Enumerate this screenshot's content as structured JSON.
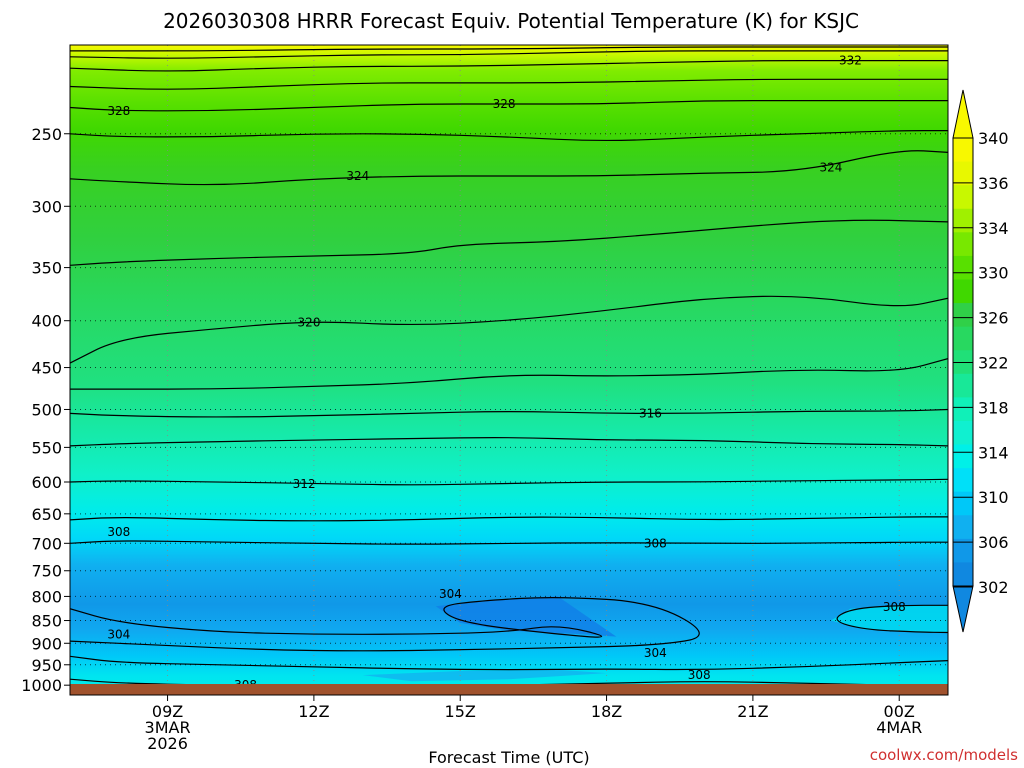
{
  "chart_data": {
    "type": "heatmap",
    "title": "2026030308 HRRR Forecast Equiv. Potential Temperature (K) for KSJC",
    "xlabel": "Forecast Time (UTC)",
    "ylabel": "",
    "y_scale": "log",
    "y_inverted": true,
    "ylim": [
      1025,
      200
    ],
    "y_ticks": [
      250,
      300,
      350,
      400,
      450,
      500,
      550,
      600,
      650,
      700,
      750,
      800,
      850,
      900,
      950,
      1000
    ],
    "x_range_hours": [
      7,
      25
    ],
    "x_ticks": [
      {
        "hour": 9,
        "lines": [
          "09Z",
          "3MAR",
          "2026"
        ]
      },
      {
        "hour": 12,
        "lines": [
          "12Z"
        ]
      },
      {
        "hour": 15,
        "lines": [
          "15Z"
        ]
      },
      {
        "hour": 18,
        "lines": [
          "18Z"
        ]
      },
      {
        "hour": 21,
        "lines": [
          "21Z"
        ]
      },
      {
        "hour": 24,
        "lines": [
          "00Z",
          "4MAR"
        ]
      }
    ],
    "grid": true,
    "colorbar": {
      "placement": "right",
      "labels": [
        "340",
        "336",
        "334",
        "330",
        "326",
        "322",
        "318",
        "314",
        "310",
        "306",
        "302"
      ],
      "colors": [
        "#f8f800",
        "#e8f800",
        "#c8f800",
        "#a0f000",
        "#78e800",
        "#58e000",
        "#40d800",
        "#30d048",
        "#28d860",
        "#20e078",
        "#18e898",
        "#10f0b8",
        "#10f0d0",
        "#00f0e8",
        "#00e0f8",
        "#00c8f8",
        "#10b0f0",
        "#1098e8",
        "#1088e0"
      ],
      "low_color": "#1088e0",
      "high_color": "#f8f800"
    },
    "ground_color": "#a0522d",
    "contours": [
      {
        "theta": 304,
        "points": [
          [
            7,
            825
          ],
          [
            8,
            855
          ],
          [
            10,
            875
          ],
          [
            12,
            880
          ],
          [
            14,
            880
          ],
          [
            16,
            875
          ],
          [
            17,
            858
          ],
          [
            18.2,
            890
          ],
          [
            17,
            880
          ],
          [
            15,
            855
          ],
          [
            14.5,
            820
          ],
          [
            15.5,
            808
          ],
          [
            17,
            800
          ],
          [
            19,
            812
          ],
          [
            20.2,
            885
          ],
          [
            19,
            905
          ],
          [
            17,
            910
          ],
          [
            15,
            915
          ],
          [
            13,
            918
          ],
          [
            11,
            915
          ],
          [
            9,
            905
          ],
          [
            7,
            895
          ]
        ]
      },
      {
        "theta": 306,
        "points": [
          [
            7,
            930
          ],
          [
            8,
            945
          ],
          [
            10,
            950
          ],
          [
            12,
            955
          ],
          [
            14,
            960
          ],
          [
            16,
            962
          ],
          [
            18,
            960
          ],
          [
            20,
            962
          ],
          [
            22,
            955
          ],
          [
            24,
            945
          ],
          [
            25,
            940
          ]
        ]
      },
      {
        "theta": 308,
        "points": [
          [
            7,
            985
          ],
          [
            8,
            995
          ],
          [
            10,
            1000
          ],
          [
            12,
            1005
          ],
          [
            14,
            1005
          ],
          [
            16,
            1000
          ],
          [
            18,
            995
          ],
          [
            20,
            990
          ],
          [
            22,
            995
          ],
          [
            24,
            1000
          ],
          [
            25,
            1010
          ]
        ]
      },
      {
        "theta": 308,
        "points": [
          [
            7,
            700
          ],
          [
            8,
            695
          ],
          [
            10,
            698
          ],
          [
            12,
            700
          ],
          [
            14,
            702
          ],
          [
            16,
            700
          ],
          [
            18,
            699
          ],
          [
            20,
            700
          ],
          [
            22,
            700
          ],
          [
            24,
            698
          ],
          [
            25,
            698
          ]
        ]
      },
      {
        "theta": 308,
        "points": [
          [
            25,
            818
          ],
          [
            24,
            818
          ],
          [
            23,
            825
          ],
          [
            22.6,
            850
          ],
          [
            23.3,
            870
          ],
          [
            24.4,
            875
          ],
          [
            25,
            876
          ]
        ]
      },
      {
        "theta": 310,
        "points": [
          [
            7,
            660
          ],
          [
            8,
            655
          ],
          [
            10,
            660
          ],
          [
            12,
            662
          ],
          [
            14,
            660
          ],
          [
            16,
            655
          ],
          [
            18,
            656
          ],
          [
            20,
            660
          ],
          [
            22,
            658
          ],
          [
            24,
            655
          ],
          [
            25,
            655
          ]
        ]
      },
      {
        "theta": 312,
        "points": [
          [
            7,
            600
          ],
          [
            8,
            598
          ],
          [
            10,
            600
          ],
          [
            12,
            602
          ],
          [
            14,
            605
          ],
          [
            16,
            602
          ],
          [
            18,
            600
          ],
          [
            20,
            600
          ],
          [
            22,
            598
          ],
          [
            24,
            597
          ],
          [
            25,
            596
          ]
        ]
      },
      {
        "theta": 314,
        "points": [
          [
            7,
            548
          ],
          [
            8,
            545
          ],
          [
            10,
            542
          ],
          [
            12,
            540
          ],
          [
            14,
            538
          ],
          [
            16,
            536
          ],
          [
            18,
            540
          ],
          [
            20,
            540
          ],
          [
            22,
            545
          ],
          [
            24,
            546
          ],
          [
            25,
            548
          ]
        ]
      },
      {
        "theta": 316,
        "points": [
          [
            7,
            505
          ],
          [
            8,
            508
          ],
          [
            10,
            510
          ],
          [
            12,
            508
          ],
          [
            14,
            505
          ],
          [
            16,
            502
          ],
          [
            18,
            505
          ],
          [
            20,
            505
          ],
          [
            22,
            502
          ],
          [
            24,
            502
          ],
          [
            25,
            500
          ]
        ]
      },
      {
        "theta": 318,
        "points": [
          [
            7,
            475
          ],
          [
            8,
            475
          ],
          [
            10,
            475
          ],
          [
            12,
            472
          ],
          [
            14,
            468
          ],
          [
            16,
            458
          ],
          [
            18,
            460
          ],
          [
            20,
            458
          ],
          [
            22,
            452
          ],
          [
            24,
            455
          ],
          [
            25,
            440
          ]
        ]
      },
      {
        "theta": 320,
        "points": [
          [
            7,
            445
          ],
          [
            8,
            418
          ],
          [
            10,
            408
          ],
          [
            12,
            400
          ],
          [
            14,
            405
          ],
          [
            16,
            400
          ],
          [
            18,
            390
          ],
          [
            20,
            378
          ],
          [
            22,
            375
          ],
          [
            24,
            388
          ],
          [
            25,
            378
          ]
        ]
      },
      {
        "theta": 322,
        "points": [
          [
            7,
            348
          ],
          [
            8,
            345
          ],
          [
            10,
            342
          ],
          [
            12,
            340
          ],
          [
            14,
            338
          ],
          [
            15,
            330
          ],
          [
            17,
            328
          ],
          [
            19,
            322
          ],
          [
            21,
            315
          ],
          [
            23,
            310
          ],
          [
            25,
            312
          ]
        ]
      },
      {
        "theta": 324,
        "points": [
          [
            7,
            280
          ],
          [
            8,
            282
          ],
          [
            10,
            285
          ],
          [
            12,
            280
          ],
          [
            14,
            278
          ],
          [
            16,
            278
          ],
          [
            18,
            278
          ],
          [
            20,
            276
          ],
          [
            22,
            275
          ],
          [
            24,
            260
          ],
          [
            25,
            262
          ]
        ]
      },
      {
        "theta": 326,
        "points": [
          [
            7,
            250
          ],
          [
            8,
            252
          ],
          [
            10,
            252
          ],
          [
            12,
            250
          ],
          [
            14,
            250
          ],
          [
            16,
            252
          ],
          [
            18,
            255
          ],
          [
            20,
            252
          ],
          [
            22,
            250
          ],
          [
            24,
            248
          ],
          [
            25,
            248
          ]
        ]
      },
      {
        "theta": 328,
        "points": [
          [
            7,
            234
          ],
          [
            8,
            236
          ],
          [
            10,
            236
          ],
          [
            12,
            234
          ],
          [
            14,
            232
          ],
          [
            16,
            232
          ],
          [
            18,
            232
          ],
          [
            20,
            230
          ],
          [
            22,
            230
          ],
          [
            24,
            230
          ],
          [
            25,
            230
          ]
        ]
      },
      {
        "theta": 330,
        "points": [
          [
            7,
            222
          ],
          [
            9,
            224
          ],
          [
            11,
            222
          ],
          [
            13,
            220
          ],
          [
            15,
            220
          ],
          [
            17,
            220
          ],
          [
            19,
            219
          ],
          [
            21,
            218
          ],
          [
            23,
            218
          ],
          [
            25,
            218
          ]
        ]
      },
      {
        "theta": 332,
        "points": [
          [
            7,
            212
          ],
          [
            9,
            214
          ],
          [
            11,
            212
          ],
          [
            13,
            211
          ],
          [
            15,
            211
          ],
          [
            17,
            210
          ],
          [
            19,
            209
          ],
          [
            21,
            208
          ],
          [
            23,
            208
          ],
          [
            25,
            208
          ]
        ]
      },
      {
        "theta": 334,
        "points": [
          [
            7,
            206
          ],
          [
            9,
            207
          ],
          [
            11,
            206
          ],
          [
            13,
            205
          ],
          [
            15,
            205
          ],
          [
            17,
            204
          ],
          [
            19,
            203
          ],
          [
            21,
            203
          ],
          [
            23,
            203
          ],
          [
            25,
            203
          ]
        ]
      },
      {
        "theta": 336,
        "points": [
          [
            7,
            203
          ],
          [
            10,
            203
          ],
          [
            13,
            202
          ],
          [
            16,
            202
          ],
          [
            19,
            201
          ],
          [
            22,
            201
          ],
          [
            25,
            201
          ]
        ]
      }
    ],
    "contour_labels": [
      {
        "text": "332",
        "hour": 23.0,
        "p": 208
      },
      {
        "text": "328",
        "hour": 8.0,
        "p": 236
      },
      {
        "text": "328",
        "hour": 15.9,
        "p": 232
      },
      {
        "text": "324",
        "hour": 12.9,
        "p": 278
      },
      {
        "text": "324",
        "hour": 22.6,
        "p": 272
      },
      {
        "text": "320",
        "hour": 11.9,
        "p": 402
      },
      {
        "text": "316",
        "hour": 18.9,
        "p": 505
      },
      {
        "text": "312",
        "hour": 11.8,
        "p": 603
      },
      {
        "text": "308",
        "hour": 8.0,
        "p": 680
      },
      {
        "text": "308",
        "hour": 19.0,
        "p": 700
      },
      {
        "text": "304",
        "hour": 14.8,
        "p": 795
      },
      {
        "text": "304",
        "hour": 8.0,
        "p": 880
      },
      {
        "text": "304",
        "hour": 19.0,
        "p": 922
      },
      {
        "text": "308",
        "hour": 23.9,
        "p": 822
      },
      {
        "text": "308",
        "hour": 19.9,
        "p": 975
      },
      {
        "text": "308",
        "hour": 10.6,
        "p": 1000
      }
    ]
  },
  "credit": "coolwx.com/models"
}
